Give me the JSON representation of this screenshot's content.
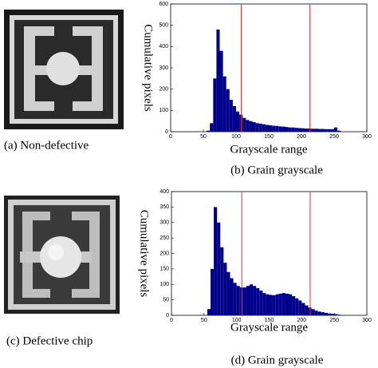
{
  "panels": [
    {
      "caption": "(a) Non-defective"
    },
    {
      "caption": "(c) Defective chip"
    }
  ],
  "chart_data": [
    {
      "type": "histogram",
      "caption": "(b) Grain grayscale",
      "xlabel": "Grayscale range",
      "ylabel": "Cumulative pixels",
      "bins": [
        55,
        60,
        65,
        70,
        75,
        80,
        85,
        90,
        95,
        100,
        105,
        110,
        115,
        120,
        125,
        130,
        135,
        140,
        145,
        150,
        155,
        160,
        165,
        170,
        175,
        180,
        185,
        190,
        195,
        200,
        205,
        210,
        215,
        220,
        225,
        230,
        235,
        240,
        245,
        250,
        255,
        260
      ],
      "counts": [
        5,
        40,
        250,
        480,
        380,
        260,
        200,
        150,
        120,
        95,
        80,
        65,
        55,
        50,
        45,
        40,
        38,
        35,
        32,
        30,
        28,
        27,
        25,
        24,
        22,
        20,
        20,
        18,
        17,
        16,
        15,
        15,
        14,
        14,
        13,
        13,
        12,
        12,
        12,
        20,
        5
      ],
      "color": "#00008b",
      "xlim": [
        0,
        300
      ],
      "ylim": [
        0,
        600
      ],
      "xticks": [
        0,
        50,
        100,
        150,
        200,
        250,
        300
      ],
      "yticks": [
        0,
        100,
        200,
        300,
        400,
        500,
        600
      ],
      "vlines": [
        108,
        213
      ],
      "vline_color": "#e0303a"
    },
    {
      "type": "histogram",
      "caption": "(d) Grain grayscale",
      "xlabel": "Grayscale range",
      "ylabel": "Cumulative pixels",
      "bins": [
        55,
        60,
        65,
        70,
        75,
        80,
        85,
        90,
        95,
        100,
        105,
        110,
        115,
        120,
        125,
        130,
        135,
        140,
        145,
        150,
        155,
        160,
        165,
        170,
        175,
        180,
        185,
        190,
        195,
        200,
        205,
        210,
        215,
        220,
        225,
        230,
        235,
        240,
        245,
        250,
        255,
        260
      ],
      "counts": [
        20,
        150,
        350,
        300,
        220,
        170,
        140,
        120,
        105,
        95,
        90,
        90,
        95,
        100,
        95,
        88,
        80,
        72,
        68,
        66,
        65,
        68,
        70,
        72,
        70,
        68,
        62,
        55,
        48,
        40,
        32,
        25,
        20,
        15,
        12,
        10,
        8,
        6,
        5,
        4,
        2
      ],
      "color": "#00008b",
      "xlim": [
        0,
        300
      ],
      "ylim": [
        0,
        400
      ],
      "xticks": [
        0,
        50,
        100,
        150,
        200,
        250,
        300
      ],
      "yticks": [
        0,
        50,
        100,
        150,
        200,
        250,
        300,
        350,
        400
      ],
      "vlines": [
        108,
        213
      ],
      "vline_color": "#e0303a"
    }
  ]
}
